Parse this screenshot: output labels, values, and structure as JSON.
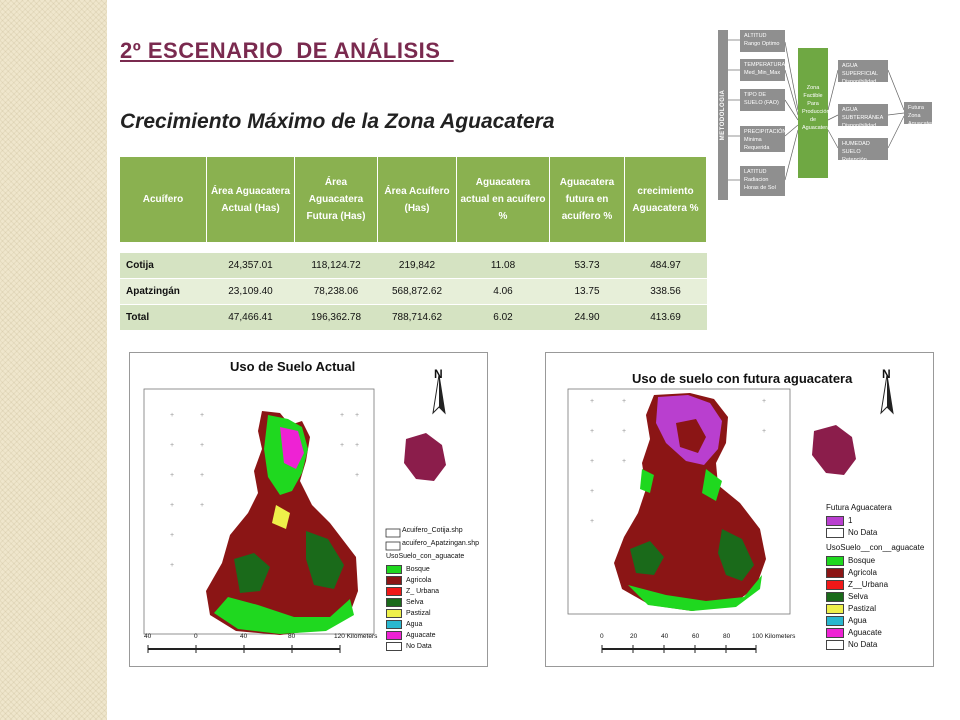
{
  "header": {
    "title": "2º ESCENARIO  DE ANÁLISIS  ",
    "subtitle": "Crecimiento Máximo de la Zona Aguacatera"
  },
  "table": {
    "columns": [
      "Acuífero",
      "Área Aguacatera Actual (Has)",
      "Área Aguacatera Futura (Has)",
      "Área Acuífero (Has)",
      "Aguacatera actual en acuífero  %",
      "Aguacatera futura en acuífero %",
      "crecimiento Aguacatera %"
    ],
    "rows": [
      {
        "name": "Cotija",
        "actual": "24,357.01",
        "futura": "118,124.72",
        "area": "219,842",
        "pct_actual": "11.08",
        "pct_futura": "53.73",
        "crecimiento": "484.97"
      },
      {
        "name": "Apatzingán",
        "actual": "23,109.40",
        "futura": "78,238.06",
        "area": "568,872.62",
        "pct_actual": "4.06",
        "pct_futura": "13.75",
        "crecimiento": "338.56"
      },
      {
        "name": "Total",
        "actual": "47,466.41",
        "futura": "196,362.78",
        "area": "788,714.62",
        "pct_actual": "6.02",
        "pct_futura": "24.90",
        "crecimiento": "413.69"
      }
    ]
  },
  "flow": {
    "side_label": "METODOLOGIA",
    "inputs": [
      "ALTITUD Rango Optimo",
      "TEMPERATURA Med_Min_Max",
      "TIPO DE SUELO (FAO)",
      "PRECIPITACIÓN Minima Requerida",
      "LATITUD Radiacion Horas de Sol"
    ],
    "center": "Zona Factible Para Producción de Aguacatera",
    "water": [
      "AGUA SUPERFICIAL Disponibilidad",
      "AGUA SUBTERRÁNEA Disponibilidad",
      "HUMEDAD SUELO Retención"
    ],
    "output": "Futura Zona Aguacatera"
  },
  "map1": {
    "title": "Uso de Suelo Actual",
    "north": "N",
    "legend_files": [
      "Acuifero_Cotija.shp",
      "acuifero_Apatzingan.shp"
    ],
    "legend_title": "UsoSuelo_con_aguacate",
    "legend_items": [
      {
        "label": "Bosque",
        "color": "#1fd81f"
      },
      {
        "label": "Agricola",
        "color": "#8b1515"
      },
      {
        "label": "Z_ Urbana",
        "color": "#f01818"
      },
      {
        "label": "Selva",
        "color": "#1a6a1a"
      },
      {
        "label": "Pastizal",
        "color": "#eef04a"
      },
      {
        "label": "Agua",
        "color": "#29b7cf"
      },
      {
        "label": "Aguacate",
        "color": "#ee22d4"
      },
      {
        "label": "No Data",
        "color": "#ffffff"
      }
    ],
    "scale": [
      "40",
      "0",
      "40",
      "80",
      "120 Kilometers"
    ]
  },
  "map2": {
    "title": "Uso de suelo con futura aguacatera",
    "north": "N",
    "future_title": "Futura Aguacatera",
    "future_items": [
      {
        "label": "1",
        "color": "#b93fcf"
      },
      {
        "label": "No Data",
        "color": "#ffffff"
      }
    ],
    "legend_title": "UsoSuelo__con__aguacate",
    "legend_items": [
      {
        "label": "Bosque",
        "color": "#1fd81f"
      },
      {
        "label": "Agricola",
        "color": "#8b1515"
      },
      {
        "label": "Z__Urbana",
        "color": "#f01818"
      },
      {
        "label": "Selva",
        "color": "#1a6a1a"
      },
      {
        "label": "Pastizal",
        "color": "#eef04a"
      },
      {
        "label": "Agua",
        "color": "#29b7cf"
      },
      {
        "label": "Aguacate",
        "color": "#ee22d4"
      },
      {
        "label": "No Data",
        "color": "#ffffff"
      }
    ],
    "scale": [
      "0",
      "20",
      "40",
      "60",
      "80",
      "100 Kilometers"
    ]
  }
}
